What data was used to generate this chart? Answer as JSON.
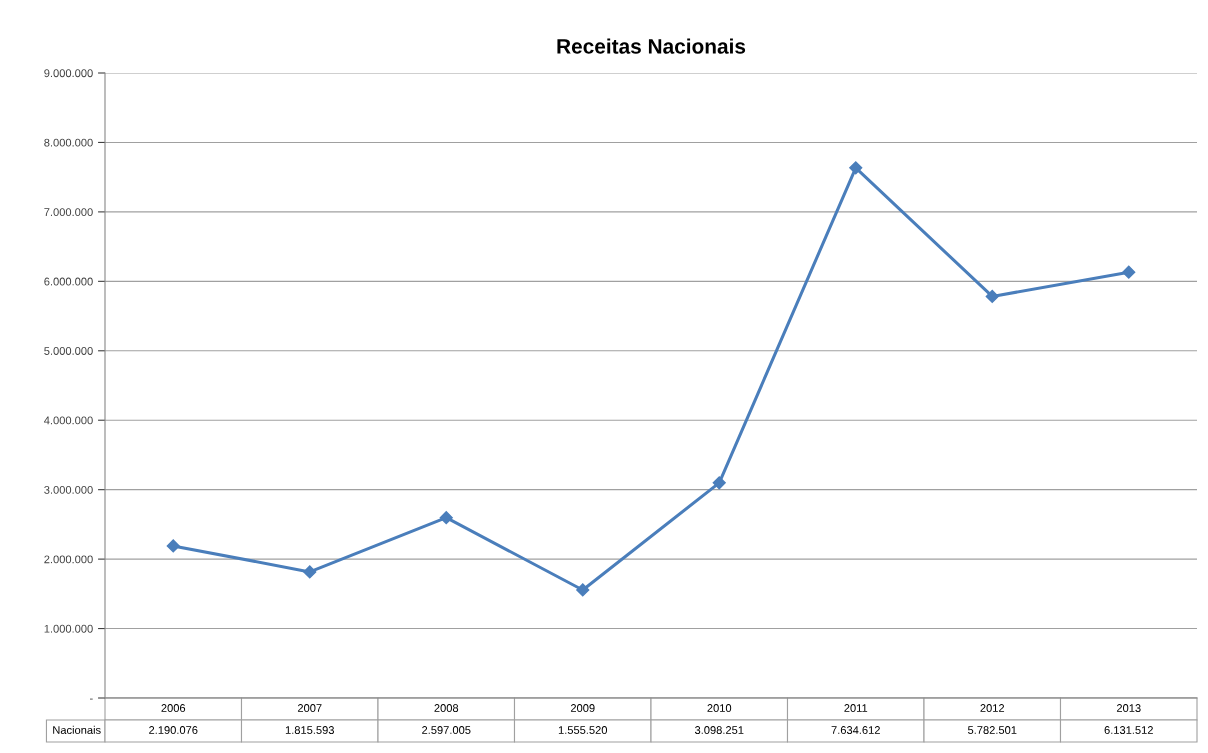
{
  "chart_data": {
    "type": "line",
    "title": "Receitas Nacionais",
    "categories": [
      "2006",
      "2007",
      "2008",
      "2009",
      "2010",
      "2011",
      "2012",
      "2013"
    ],
    "series": [
      {
        "name": "Nacionais",
        "color": "#4a7ebb",
        "values": [
          2190076,
          1815593,
          2597005,
          1555520,
          3098251,
          7634612,
          5782501,
          6131512
        ],
        "value_labels": [
          "2.190.076",
          "1.815.593",
          "2.597.005",
          "1.555.520",
          "3.098.251",
          "7.634.612",
          "5.782.501",
          "6.131.512"
        ]
      }
    ],
    "ylim": [
      0,
      9000000
    ],
    "yticks": [
      {
        "value": 0,
        "label": "-"
      },
      {
        "value": 1000000,
        "label": "1.000.000"
      },
      {
        "value": 2000000,
        "label": "2.000.000"
      },
      {
        "value": 3000000,
        "label": "3.000.000"
      },
      {
        "value": 4000000,
        "label": "4.000.000"
      },
      {
        "value": 5000000,
        "label": "5.000.000"
      },
      {
        "value": 6000000,
        "label": "6.000.000"
      },
      {
        "value": 7000000,
        "label": "7.000.000"
      },
      {
        "value": 8000000,
        "label": "8.000.000"
      },
      {
        "value": 9000000,
        "label": "9.000.000"
      }
    ],
    "grid": "y",
    "marker": "diamond",
    "line_style": "solid",
    "legend": false
  }
}
